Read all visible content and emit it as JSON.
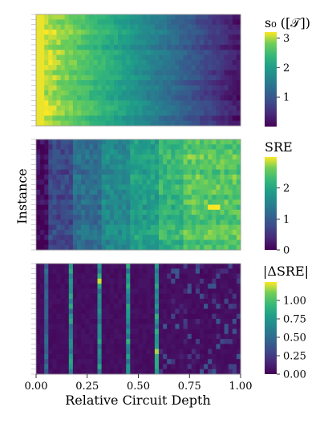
{
  "chart_data": [
    {
      "type": "heatmap",
      "title": "",
      "ylabel": "Instance",
      "xlabel": "",
      "colormap": "viridis",
      "colorbar": {
        "label": "s₀ ([𝒯])",
        "range": [
          0.0,
          3.2
        ],
        "ticks": [
          {
            "value": 1,
            "label": "1"
          },
          {
            "value": 2,
            "label": "2"
          },
          {
            "value": 3,
            "label": "3"
          }
        ]
      },
      "pattern": "high values (~3.1) at shallow relative depth (0.0-0.2), decreasing smoothly to ~0.2 at relative depth 1.0; fine-grained depth columns"
    },
    {
      "type": "heatmap",
      "title": "",
      "ylabel": "Instance",
      "xlabel": "",
      "colormap": "viridis",
      "colorbar": {
        "label": "SRE",
        "range": [
          0.0,
          3.0
        ],
        "ticks": [
          {
            "value": 0,
            "label": "0"
          },
          {
            "value": 1,
            "label": "1"
          },
          {
            "value": 2,
            "label": "2"
          }
        ]
      },
      "pattern": "near 0 at depth 0.0-0.05, increasing step-wise in blocks (0.05-0.17, 0.17-0.31, 0.31-0.45, 0.45-0.6, 0.6-0.73, 0.73-1.0) up to ~2.5; one bright cell ~3.0 near depth 0.88"
    },
    {
      "type": "heatmap",
      "title": "",
      "ylabel": "",
      "xlabel": "Relative Circuit Depth",
      "colormap": "viridis",
      "colorbar": {
        "label": "|ΔSRE|",
        "range": [
          0.0,
          1.25
        ],
        "ticks": [
          {
            "value": 0.0,
            "label": "0.00"
          },
          {
            "value": 0.25,
            "label": "0.25"
          },
          {
            "value": 0.5,
            "label": "0.50"
          },
          {
            "value": 0.75,
            "label": "0.75"
          },
          {
            "value": 1.0,
            "label": "1.00"
          }
        ]
      },
      "pattern": "mostly ~0; bright vertical stripes at block boundaries (depth ~0.04, 0.17, 0.31, 0.45, 0.6) with values 0.5-1.2; scattered small values after 0.6"
    }
  ],
  "x_axis": {
    "label": "Relative Circuit Depth",
    "range": [
      0.0,
      1.0
    ],
    "ticks": [
      {
        "value": 0.0,
        "label": "0.00"
      },
      {
        "value": 0.25,
        "label": "0.25"
      },
      {
        "value": 0.5,
        "label": "0.50"
      },
      {
        "value": 0.75,
        "label": "0.75"
      },
      {
        "value": 1.0,
        "label": "1.00"
      }
    ]
  },
  "shared_ylabel": "Instance"
}
